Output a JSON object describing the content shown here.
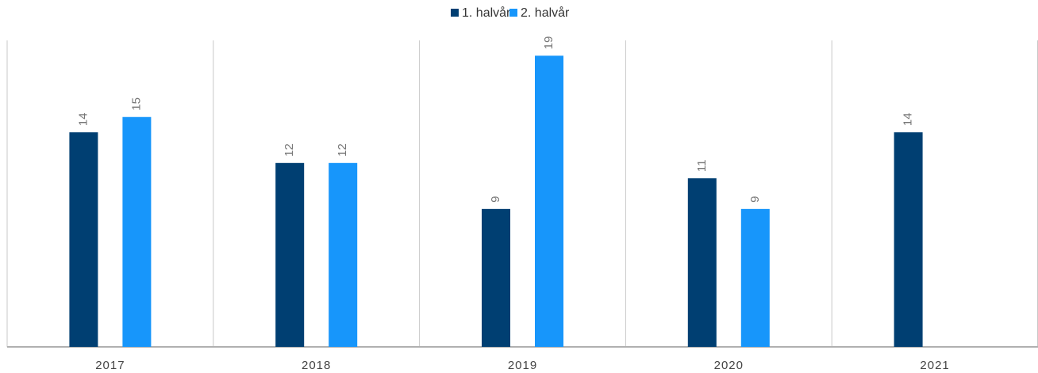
{
  "chart_data": {
    "type": "bar",
    "categories": [
      "2017",
      "2018",
      "2019",
      "2020",
      "2021"
    ],
    "series": [
      {
        "name": "1. halvår",
        "color": "#003f72",
        "values": [
          14,
          12,
          9,
          11,
          14
        ]
      },
      {
        "name": "2. halvår",
        "color": "#1796fb",
        "values": [
          15,
          12,
          19,
          9,
          null
        ]
      }
    ],
    "ylim": [
      0,
      20
    ],
    "legend": "top"
  }
}
